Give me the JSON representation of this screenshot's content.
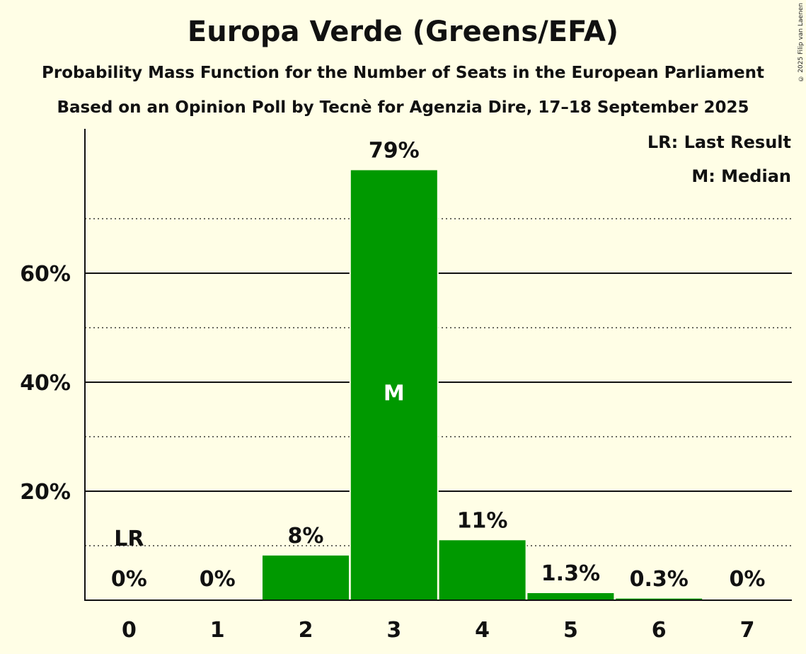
{
  "chart_data": {
    "type": "bar",
    "title": "Europa Verde (Greens/EFA)",
    "subtitle": "Probability Mass Function for the Number of Seats in the European Parliament",
    "source": "Based on an Opinion Poll by Tecnè for Agenzia Dire, 17–18 September 2025",
    "categories": [
      "0",
      "1",
      "2",
      "3",
      "4",
      "5",
      "6",
      "7"
    ],
    "values": [
      0,
      0,
      8.2,
      78.9,
      11.0,
      1.3,
      0.3,
      0
    ],
    "value_labels": [
      "0%",
      "0%",
      "8%",
      "79%",
      "11%",
      "1.3%",
      "0.3%",
      "0%"
    ],
    "ylim": [
      0,
      86
    ],
    "yticks": [
      20,
      40,
      60
    ],
    "ytick_labels": [
      "20%",
      "40%",
      "60%"
    ],
    "minor_gridlines": [
      10,
      30,
      50,
      70
    ],
    "last_result_category": "0",
    "last_result_label": "LR",
    "median_category": "3",
    "median_label": "M",
    "legend": [
      "LR: Last Result",
      "M: Median"
    ],
    "legend_position": "top-right",
    "bar_color": "#009900"
  },
  "copyright": "© 2025 Filip van Laenen"
}
